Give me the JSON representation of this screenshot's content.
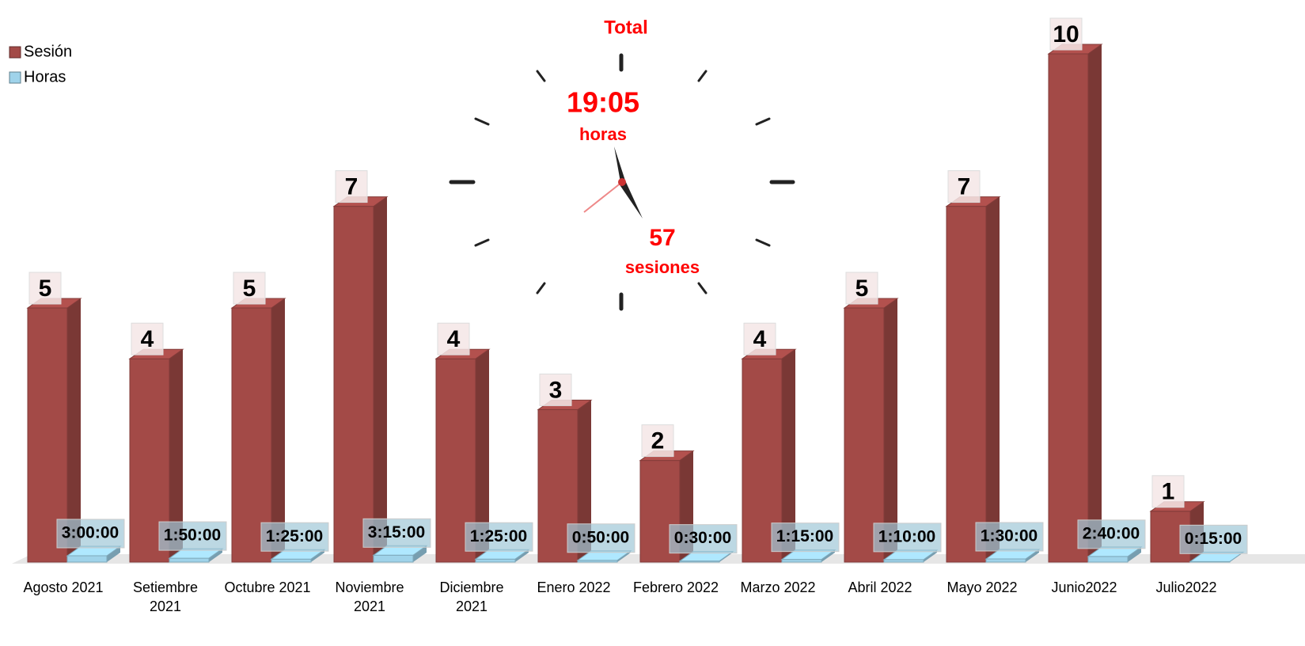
{
  "chart_data": {
    "type": "bar3d",
    "categories": [
      "Agosto 2021",
      "Setiembre 2021",
      "Octubre 2021",
      "Noviembre 2021",
      "Diciembre 2021",
      "Enero 2022",
      "Febrero 2022",
      "Marzo 2022",
      "Abril 2022",
      "Mayo 2022",
      "Junio2022",
      "Julio2022"
    ],
    "series": [
      {
        "name": "Sesión",
        "color": "#a34a47",
        "values": [
          5,
          4,
          5,
          7,
          4,
          3,
          2,
          4,
          5,
          7,
          10,
          1
        ]
      },
      {
        "name": "Horas",
        "color": "#9fd3ea",
        "values": [
          0.125,
          0.076389,
          0.059028,
          0.135417,
          0.059028,
          0.034722,
          0.020833,
          0.052083,
          0.048611,
          0.0625,
          0.111111,
          0.010417
        ],
        "value_labels": [
          "3:00:00",
          "1:50:00",
          "1:25:00",
          "3:15:00",
          "1:25:00",
          "0:50:00",
          "0:30:00",
          "1:15:00",
          "1:10:00",
          "1:30:00",
          "2:40:00",
          "0:15:00"
        ]
      }
    ],
    "legend": "top-left",
    "annotation": {
      "title": "Total",
      "hours": "19:05",
      "hours_unit": "horas",
      "sessions": "57",
      "sessions_unit": "sesiones"
    }
  }
}
